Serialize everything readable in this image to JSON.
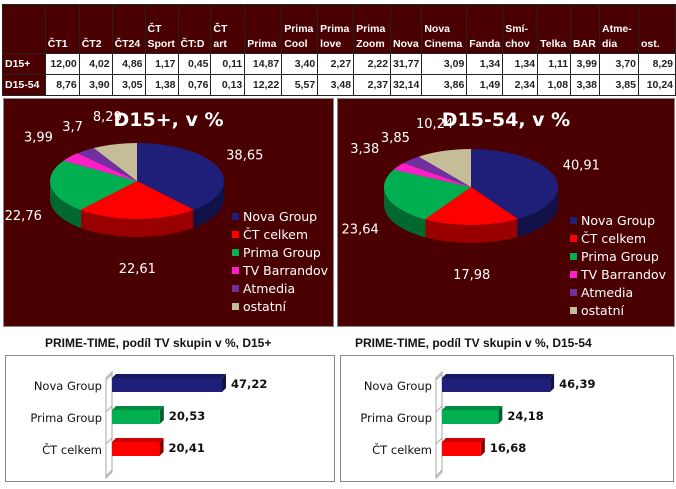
{
  "table": {
    "columns": [
      "ČT1",
      "ČT2",
      "ČT24",
      "ČT Sport",
      "ČT:D",
      "ČT art",
      "Prima",
      "Prima Cool",
      "Prima love",
      "Prima Zoom",
      "Nova",
      "Nova Cinema",
      "Fanda",
      "Smí- chov",
      "Telka",
      "BAR",
      "Atme- dia",
      "ost."
    ],
    "rows": [
      {
        "label": "D15+",
        "values": [
          "12,00",
          "4,02",
          "4,86",
          "1,17",
          "0,45",
          "0,11",
          "14,87",
          "3,40",
          "2,27",
          "2,22",
          "31,77",
          "3,09",
          "1,34",
          "1,34",
          "1,11",
          "3,99",
          "3,70",
          "8,29"
        ]
      },
      {
        "label": "D15-54",
        "values": [
          "8,76",
          "3,90",
          "3,05",
          "1,38",
          "0,76",
          "0,13",
          "12,22",
          "5,57",
          "3,48",
          "2,37",
          "32,14",
          "3,86",
          "1,49",
          "2,34",
          "1,08",
          "3,38",
          "3,85",
          "10,24"
        ]
      }
    ]
  },
  "chart_data": [
    {
      "type": "pie",
      "title": "D15+, v %",
      "categories": [
        "Nova Group",
        "ČT celkem",
        "Prima Group",
        "TV Barrandov",
        "Atmedia",
        "ostatní"
      ],
      "values": [
        38.65,
        22.61,
        22.76,
        3.99,
        3.7,
        8.29
      ],
      "labels": [
        "38,65",
        "22,61",
        "22,76",
        "3,99",
        "3,7",
        "8,29"
      ],
      "colors": [
        "#1f1f7a",
        "#ff0000",
        "#00b050",
        "#ff1fc8",
        "#7030a0",
        "#c4bd97"
      ],
      "legend": "right"
    },
    {
      "type": "pie",
      "title": "D15-54, v %",
      "categories": [
        "Nova Group",
        "ČT celkem",
        "Prima Group",
        "TV Barrandov",
        "Atmedia",
        "ostatní"
      ],
      "values": [
        40.91,
        17.98,
        23.64,
        3.38,
        3.85,
        10.24
      ],
      "labels": [
        "40,91",
        "17,98",
        "23,64",
        "3,38",
        "3,85",
        "10,24"
      ],
      "colors": [
        "#1f1f7a",
        "#ff0000",
        "#00b050",
        "#ff1fc8",
        "#7030a0",
        "#c4bd97"
      ],
      "legend": "right"
    },
    {
      "type": "bar",
      "title": "PRIME-TIME, podíl TV skupin v %, D15+",
      "categories": [
        "Nova Group",
        "Prima Group",
        "ČT celkem"
      ],
      "values": [
        47.22,
        20.53,
        20.41
      ],
      "labels": [
        "47,22",
        "20,53",
        "20,41"
      ],
      "colors": [
        "#1f1f7a",
        "#00b050",
        "#ff0000"
      ]
    },
    {
      "type": "bar",
      "title": "PRIME-TIME, podíl TV skupin v %, D15-54",
      "categories": [
        "Nova Group",
        "Prima Group",
        "ČT celkem"
      ],
      "values": [
        46.39,
        24.18,
        16.68
      ],
      "labels": [
        "46,39",
        "24,18",
        "16,68"
      ],
      "colors": [
        "#1f1f7a",
        "#00b050",
        "#ff0000"
      ]
    }
  ]
}
